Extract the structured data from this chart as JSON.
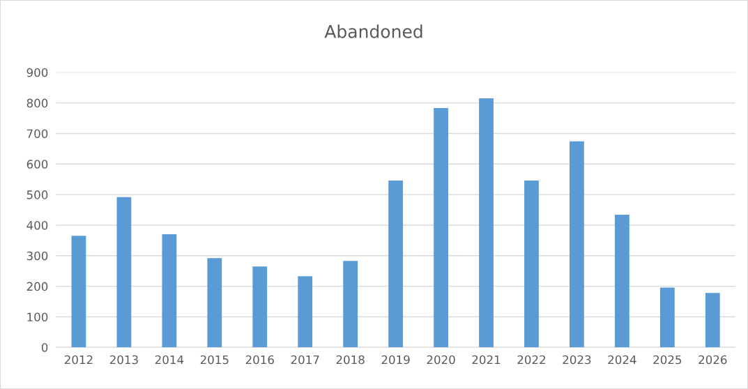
{
  "chart_data": {
    "type": "bar",
    "title": "Abandoned",
    "categories": [
      "2012",
      "2013",
      "2014",
      "2015",
      "2016",
      "2017",
      "2018",
      "2019",
      "2020",
      "2021",
      "2022",
      "2023",
      "2024",
      "2025",
      "2026"
    ],
    "values": [
      365,
      492,
      370,
      292,
      265,
      233,
      283,
      546,
      783,
      815,
      546,
      674,
      434,
      196,
      178
    ],
    "color": "#5b9bd5",
    "ylim": [
      0,
      900
    ],
    "yticks": [
      0,
      100,
      200,
      300,
      400,
      500,
      600,
      700,
      800,
      900
    ],
    "grid": "y"
  }
}
